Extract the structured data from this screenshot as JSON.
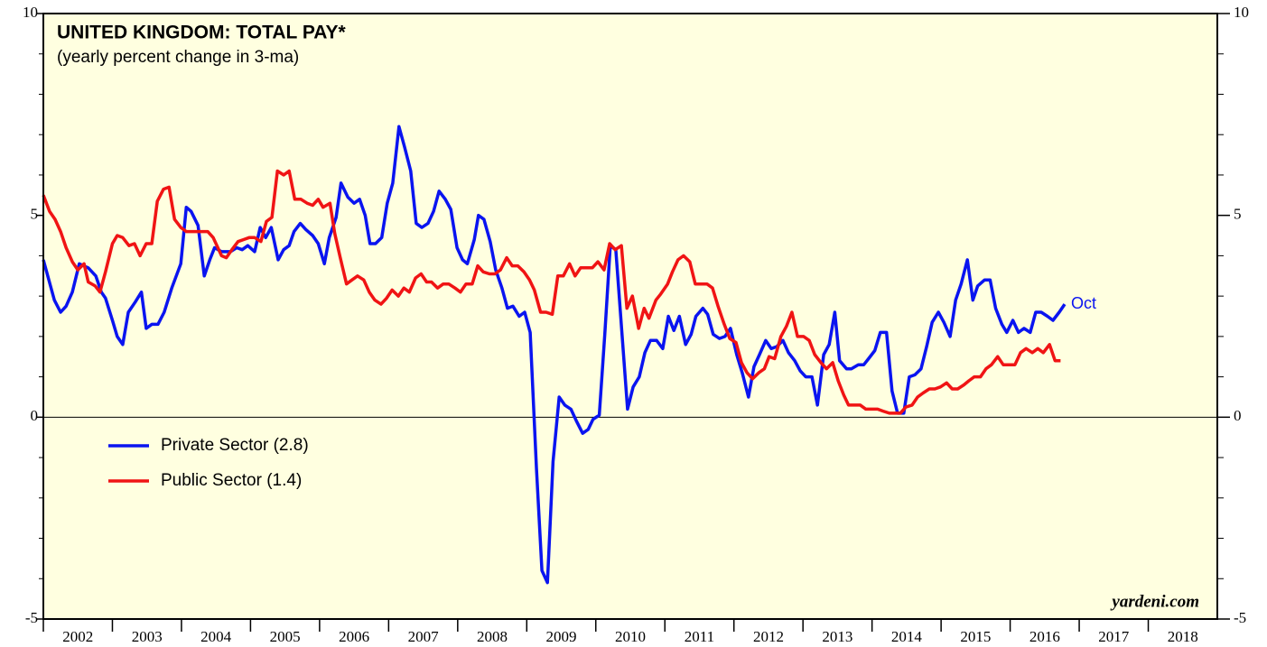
{
  "chart_data": {
    "type": "line",
    "title": "UNITED KINGDOM: TOTAL PAY*",
    "subtitle": "(yearly percent change in 3-ma)",
    "annotations": [
      "Oct",
      "yardeni.com"
    ],
    "xlim": [
      2002,
      2019
    ],
    "xticks": [
      2002,
      2003,
      2004,
      2005,
      2006,
      2007,
      2008,
      2009,
      2010,
      2011,
      2012,
      2013,
      2014,
      2015,
      2016,
      2017,
      2018
    ],
    "ylim": [
      -5,
      10
    ],
    "yticks": [
      -5,
      0,
      5,
      10
    ],
    "yminorticks": [
      -4,
      -3,
      -2,
      -1,
      1,
      2,
      3,
      4,
      6,
      7,
      8,
      9
    ],
    "legend": "lower left",
    "series": [
      {
        "name": "Private Sector (2.8)",
        "color": "#0a14f0",
        "x": [
          2002.0,
          2002.16,
          2002.25,
          2002.33,
          2002.42,
          2002.52,
          2002.65,
          2002.76,
          2002.84,
          2002.9,
          2003.0,
          2003.07,
          2003.15,
          2003.23,
          2003.33,
          2003.42,
          2003.49,
          2003.57,
          2003.66,
          2003.75,
          2003.86,
          2003.99,
          2004.07,
          2004.14,
          2004.24,
          2004.33,
          2004.41,
          2004.48,
          2004.58,
          2004.71,
          2004.8,
          2004.88,
          2004.96,
          2005.06,
          2005.14,
          2005.22,
          2005.3,
          2005.4,
          2005.48,
          2005.56,
          2005.63,
          2005.72,
          2005.8,
          2005.9,
          2005.98,
          2006.07,
          2006.14,
          2006.24,
          2006.31,
          2006.41,
          2006.5,
          2006.58,
          2006.66,
          2006.73,
          2006.81,
          2006.9,
          2006.98,
          2007.06,
          2007.15,
          2007.23,
          2007.32,
          2007.4,
          2007.48,
          2007.57,
          2007.65,
          2007.73,
          2007.82,
          2007.9,
          2007.99,
          2008.07,
          2008.14,
          2008.24,
          2008.3,
          2008.38,
          2008.47,
          2008.55,
          2008.64,
          2008.72,
          2008.8,
          2008.89,
          2008.97,
          2009.05,
          2009.14,
          2009.22,
          2009.3,
          2009.38,
          2009.47,
          2009.55,
          2009.64,
          2009.72,
          2009.81,
          2009.89,
          2009.96,
          2010.05,
          2010.13,
          2010.21,
          2010.29,
          2010.38,
          2010.46,
          2010.54,
          2010.63,
          2010.71,
          2010.79,
          2010.88,
          2010.97,
          2011.05,
          2011.13,
          2011.21,
          2011.3,
          2011.38,
          2011.45,
          2011.55,
          2011.62,
          2011.7,
          2011.79,
          2011.87,
          2011.95,
          2012.04,
          2012.12,
          2012.21,
          2012.29,
          2012.37,
          2012.46,
          2012.54,
          2012.62,
          2012.71,
          2012.79,
          2012.88,
          2012.96,
          2013.04,
          2013.13,
          2013.21,
          2013.3,
          2013.38,
          2013.46,
          2013.53,
          2013.63,
          2013.7,
          2013.8,
          2013.88,
          2013.95,
          2014.04,
          2014.12,
          2014.21,
          2014.29,
          2014.37,
          2014.46,
          2014.54,
          2014.62,
          2014.71,
          2014.79,
          2014.87,
          2014.96,
          2015.04,
          2015.13,
          2015.21,
          2015.29,
          2015.38,
          2015.46,
          2015.53,
          2015.63,
          2015.71,
          2015.79,
          2015.88,
          2015.95,
          2016.04,
          2016.12,
          2016.2,
          2016.29,
          2016.37,
          2016.45,
          2016.54,
          2016.62,
          2016.71,
          2016.79
        ],
        "values": [
          3.9,
          2.9,
          2.6,
          2.75,
          3.1,
          3.8,
          3.7,
          3.5,
          3.1,
          2.95,
          2.4,
          2.0,
          1.8,
          2.6,
          2.85,
          3.1,
          2.2,
          2.3,
          2.3,
          2.6,
          3.2,
          3.8,
          5.2,
          5.1,
          4.75,
          3.5,
          3.9,
          4.2,
          4.1,
          4.1,
          4.2,
          4.15,
          4.25,
          4.1,
          4.7,
          4.45,
          4.7,
          3.9,
          4.15,
          4.25,
          4.6,
          4.8,
          4.65,
          4.5,
          4.3,
          3.8,
          4.45,
          4.95,
          5.8,
          5.45,
          5.3,
          5.4,
          5.0,
          4.3,
          4.3,
          4.45,
          5.3,
          5.8,
          7.2,
          6.7,
          6.1,
          4.8,
          4.7,
          4.8,
          5.1,
          5.6,
          5.4,
          5.15,
          4.2,
          3.9,
          3.8,
          4.4,
          5.0,
          4.9,
          4.35,
          3.65,
          3.2,
          2.7,
          2.75,
          2.5,
          2.6,
          2.1,
          -1.25,
          -3.8,
          -4.1,
          -1.1,
          0.5,
          0.3,
          0.2,
          -0.1,
          -0.4,
          -0.3,
          -0.05,
          0.05,
          2.05,
          4.25,
          4.15,
          2.05,
          0.2,
          0.75,
          1.0,
          1.6,
          1.9,
          1.9,
          1.7,
          2.5,
          2.15,
          2.5,
          1.8,
          2.05,
          2.5,
          2.7,
          2.55,
          2.05,
          1.95,
          2.0,
          2.2,
          1.55,
          1.1,
          0.5,
          1.25,
          1.55,
          1.9,
          1.7,
          1.75,
          1.9,
          1.6,
          1.4,
          1.15,
          1.0,
          1.0,
          0.3,
          1.55,
          1.8,
          2.6,
          1.4,
          1.2,
          1.2,
          1.3,
          1.3,
          1.45,
          1.65,
          2.1,
          2.1,
          0.65,
          0.1,
          0.1,
          1.0,
          1.05,
          1.2,
          1.75,
          2.35,
          2.6,
          2.35,
          2.0,
          2.9,
          3.3,
          3.9,
          2.9,
          3.25,
          3.4,
          3.4,
          2.7,
          2.3,
          2.1,
          2.4,
          2.1,
          2.2,
          2.1,
          2.6,
          2.6,
          2.5,
          2.4,
          2.6,
          2.8
        ]
      },
      {
        "name": "Public Sector (1.4)",
        "color": "#f01414",
        "x": [
          2002.0,
          2002.09,
          2002.17,
          2002.25,
          2002.33,
          2002.42,
          2002.5,
          2002.59,
          2002.65,
          2002.75,
          2002.82,
          2002.9,
          2003.0,
          2003.07,
          2003.15,
          2003.24,
          2003.32,
          2003.4,
          2003.49,
          2003.57,
          2003.65,
          2003.74,
          2003.82,
          2003.9,
          2003.99,
          2004.07,
          2004.22,
          2004.38,
          2004.46,
          2004.58,
          2004.65,
          2004.73,
          2004.82,
          2004.9,
          2004.98,
          2005.06,
          2005.15,
          2005.23,
          2005.31,
          2005.39,
          2005.48,
          2005.56,
          2005.64,
          2005.73,
          2005.82,
          2005.9,
          2005.98,
          2006.05,
          2006.15,
          2006.22,
          2006.3,
          2006.39,
          2006.47,
          2006.55,
          2006.64,
          2006.72,
          2006.8,
          2006.89,
          2006.97,
          2007.05,
          2007.14,
          2007.22,
          2007.3,
          2007.39,
          2007.47,
          2007.55,
          2007.62,
          2007.71,
          2007.79,
          2007.87,
          2007.96,
          2008.04,
          2008.12,
          2008.21,
          2008.29,
          2008.37,
          2008.46,
          2008.54,
          2008.62,
          2008.71,
          2008.79,
          2008.87,
          2008.96,
          2009.04,
          2009.11,
          2009.2,
          2009.28,
          2009.37,
          2009.45,
          2009.53,
          2009.62,
          2009.7,
          2009.78,
          2009.87,
          2009.95,
          2010.03,
          2010.12,
          2010.2,
          2010.28,
          2010.37,
          2010.45,
          2010.53,
          2010.62,
          2010.7,
          2010.77,
          2010.87,
          2010.94,
          2011.04,
          2011.11,
          2011.19,
          2011.27,
          2011.36,
          2011.44,
          2011.52,
          2011.61,
          2011.69,
          2011.77,
          2011.86,
          2011.94,
          2012.03,
          2012.11,
          2012.19,
          2012.27,
          2012.36,
          2012.44,
          2012.51,
          2012.59,
          2012.68,
          2012.76,
          2012.84,
          2012.92,
          2013.01,
          2013.09,
          2013.17,
          2013.26,
          2013.34,
          2013.43,
          2013.51,
          2013.59,
          2013.66,
          2013.76,
          2013.83,
          2013.91,
          2014.0,
          2014.08,
          2014.16,
          2014.25,
          2014.33,
          2014.41,
          2014.49,
          2014.58,
          2014.66,
          2014.74,
          2014.83,
          2014.91,
          2014.99,
          2015.08,
          2015.16,
          2015.24,
          2015.33,
          2015.4,
          2015.48,
          2015.57,
          2015.65,
          2015.73,
          2015.82,
          2015.9,
          2015.98,
          2016.07,
          2016.15,
          2016.23,
          2016.32,
          2016.4,
          2016.48,
          2016.57,
          2016.65,
          2016.73
        ],
        "values": [
          5.5,
          5.1,
          4.9,
          4.6,
          4.2,
          3.85,
          3.65,
          3.8,
          3.35,
          3.25,
          3.1,
          3.6,
          4.3,
          4.5,
          4.45,
          4.25,
          4.3,
          4.0,
          4.3,
          4.3,
          5.35,
          5.65,
          5.7,
          4.9,
          4.7,
          4.6,
          4.6,
          4.6,
          4.45,
          4.0,
          3.95,
          4.15,
          4.35,
          4.4,
          4.45,
          4.45,
          4.35,
          4.85,
          4.95,
          6.1,
          6.0,
          6.1,
          5.4,
          5.4,
          5.3,
          5.25,
          5.4,
          5.2,
          5.3,
          4.55,
          3.95,
          3.3,
          3.4,
          3.5,
          3.4,
          3.1,
          2.9,
          2.8,
          2.95,
          3.15,
          3.0,
          3.2,
          3.1,
          3.45,
          3.55,
          3.35,
          3.35,
          3.2,
          3.3,
          3.3,
          3.2,
          3.1,
          3.3,
          3.3,
          3.75,
          3.6,
          3.55,
          3.55,
          3.65,
          3.95,
          3.75,
          3.75,
          3.6,
          3.4,
          3.15,
          2.6,
          2.6,
          2.55,
          3.5,
          3.5,
          3.8,
          3.5,
          3.7,
          3.7,
          3.7,
          3.85,
          3.65,
          4.3,
          4.15,
          4.25,
          2.7,
          3.0,
          2.2,
          2.7,
          2.45,
          2.9,
          3.05,
          3.3,
          3.6,
          3.9,
          4.0,
          3.85,
          3.3,
          3.3,
          3.3,
          3.2,
          2.75,
          2.3,
          1.95,
          1.85,
          1.35,
          1.1,
          0.95,
          1.1,
          1.2,
          1.5,
          1.45,
          2.0,
          2.25,
          2.6,
          2.0,
          2.0,
          1.9,
          1.55,
          1.35,
          1.2,
          1.35,
          0.9,
          0.55,
          0.3,
          0.3,
          0.3,
          0.2,
          0.2,
          0.2,
          0.15,
          0.1,
          0.1,
          0.1,
          0.25,
          0.3,
          0.5,
          0.6,
          0.7,
          0.7,
          0.75,
          0.85,
          0.7,
          0.7,
          0.8,
          0.9,
          1.0,
          1.0,
          1.2,
          1.3,
          1.5,
          1.3,
          1.3,
          1.3,
          1.6,
          1.7,
          1.6,
          1.7,
          1.6,
          1.8,
          1.4,
          1.4
        ]
      }
    ]
  }
}
